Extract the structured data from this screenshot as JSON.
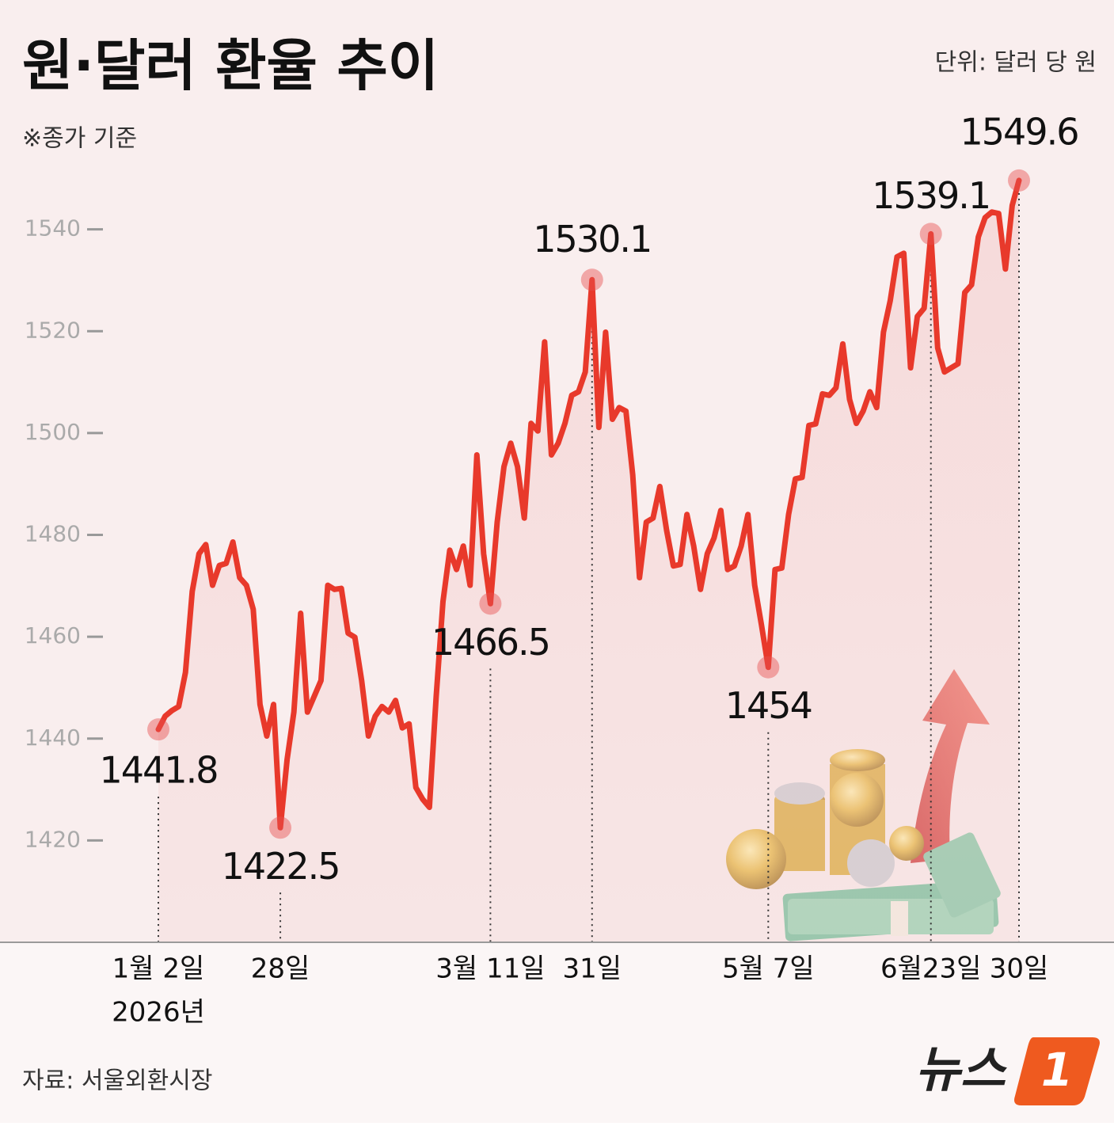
{
  "chart_data": {
    "type": "line",
    "title": "원·달러 환율 추이",
    "unit_note": "단위: 달러 당 원",
    "subtitle": "※종가 기준",
    "source": "자료: 서울외환시장",
    "logo_text": "뉴스",
    "logo_badge": "1",
    "color": "#e8392b",
    "ylim": [
      1400,
      1560
    ],
    "yticks": [
      1420,
      1440,
      1460,
      1480,
      1500,
      1520,
      1540
    ],
    "year_label": "2026년",
    "categories": [
      "1월 2일",
      null,
      null,
      null,
      null,
      null,
      null,
      null,
      null,
      null,
      null,
      null,
      null,
      null,
      null,
      null,
      null,
      null,
      "28일",
      null,
      null,
      null,
      null,
      null,
      null,
      null,
      null,
      null,
      null,
      null,
      null,
      null,
      null,
      null,
      null,
      null,
      null,
      null,
      null,
      null,
      null,
      null,
      null,
      null,
      null,
      null,
      null,
      null,
      null,
      "3월 11일",
      null,
      null,
      null,
      null,
      null,
      null,
      null,
      null,
      null,
      null,
      null,
      null,
      null,
      null,
      "31일",
      null,
      null,
      null,
      null,
      null,
      null,
      null,
      null,
      null,
      null,
      null,
      null,
      null,
      null,
      null,
      null,
      null,
      null,
      null,
      null,
      null,
      null,
      null,
      null,
      null,
      "5월 7일",
      null,
      null,
      null,
      null,
      null,
      null,
      null,
      null,
      null,
      null,
      null,
      null,
      null,
      null,
      null,
      null,
      null,
      null,
      null,
      null,
      null,
      null,
      null,
      "6월23일",
      null,
      null,
      null,
      null,
      null,
      null,
      null,
      null,
      null,
      null,
      null,
      null,
      "30일"
    ],
    "values": [
      1441.8,
      1444.4,
      1445.5,
      1446.3,
      1453.0,
      1468.9,
      1476.3,
      1478.1,
      1470.1,
      1474.0,
      1474.4,
      1478.6,
      1471.6,
      1470.1,
      1465.4,
      1446.7,
      1440.5,
      1446.7,
      1422.5,
      1435.9,
      1445.2,
      1464.6,
      1445.2,
      1448.3,
      1451.4,
      1470.1,
      1469.3,
      1469.5,
      1460.7,
      1459.9,
      1451.4,
      1440.5,
      1444.4,
      1446.3,
      1445.2,
      1447.5,
      1442.1,
      1442.9,
      1430.4,
      1428.1,
      1426.5,
      1448.3,
      1466.9,
      1477.0,
      1473.2,
      1477.8,
      1470.1,
      1495.7,
      1476.3,
      1466.5,
      1482.5,
      1493.4,
      1498.0,
      1493.4,
      1483.3,
      1501.9,
      1500.4,
      1517.9,
      1495.7,
      1498.0,
      1501.9,
      1507.4,
      1508.1,
      1512.0,
      1530.1,
      1501.1,
      1519.8,
      1502.7,
      1505.0,
      1504.3,
      1491.8,
      1471.6,
      1482.5,
      1483.3,
      1489.5,
      1480.9,
      1473.9,
      1474.2,
      1484.0,
      1477.8,
      1469.3,
      1476.3,
      1479.4,
      1484.8,
      1473.2,
      1473.9,
      1477.8,
      1484.0,
      1470.1,
      1462.3,
      1454,
      1473.2,
      1473.5,
      1484.0,
      1491.0,
      1491.3,
      1501.5,
      1501.8,
      1507.7,
      1507.4,
      1508.9,
      1517.5,
      1506.6,
      1501.9,
      1504.3,
      1508.1,
      1505.0,
      1519.8,
      1526.0,
      1534.6,
      1535.3,
      1512.8,
      1522.9,
      1524.5,
      1539.1,
      1516.7,
      1512.0,
      1512.8,
      1513.6,
      1527.6,
      1529.1,
      1538.5,
      1542.3,
      1543.4,
      1543.1,
      1532.2,
      1544.7,
      1549.6
    ]
  }
}
